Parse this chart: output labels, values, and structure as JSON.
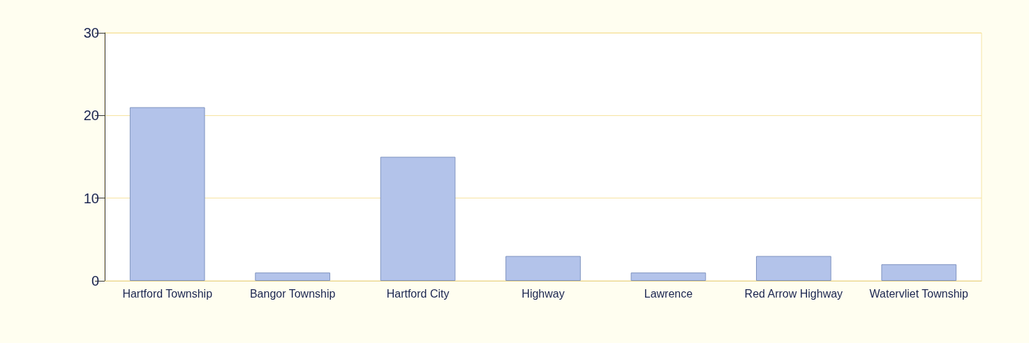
{
  "chart_data": {
    "type": "bar",
    "categories": [
      "Hartford Township",
      "Bangor Township",
      "Hartford City",
      "Highway",
      "Lawrence",
      "Red Arrow Highway",
      "Watervliet Township"
    ],
    "values": [
      21,
      1,
      15,
      3,
      1,
      3,
      2
    ],
    "color": "#b3c3ea",
    "ylim": [
      0,
      30
    ],
    "yticks": [
      0,
      10,
      20,
      30
    ],
    "grid": "y"
  }
}
